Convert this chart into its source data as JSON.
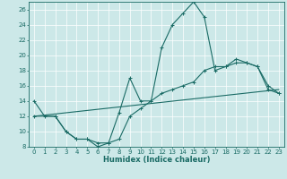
{
  "xlabel": "Humidex (Indice chaleur)",
  "bg_color": "#cce8e8",
  "line_color": "#1a6b65",
  "xlim": [
    -0.5,
    23.5
  ],
  "ylim": [
    8,
    27
  ],
  "xticks": [
    0,
    1,
    2,
    3,
    4,
    5,
    6,
    7,
    8,
    9,
    10,
    11,
    12,
    13,
    14,
    15,
    16,
    17,
    18,
    19,
    20,
    21,
    22,
    23
  ],
  "yticks": [
    8,
    10,
    12,
    14,
    16,
    18,
    20,
    22,
    24,
    26
  ],
  "curve1_x": [
    0,
    1,
    2,
    3,
    4,
    5,
    6,
    7,
    8,
    9,
    10,
    11,
    12,
    13,
    14,
    15,
    16,
    17,
    18,
    19,
    20,
    21,
    22,
    23
  ],
  "curve1_y": [
    14,
    12,
    12,
    10,
    9,
    9,
    8,
    8.5,
    12.5,
    17,
    14,
    14,
    21,
    24,
    25.5,
    27,
    25,
    18,
    18.5,
    19.5,
    19,
    18.5,
    16,
    15
  ],
  "curve2_x": [
    0,
    2,
    3,
    4,
    5,
    6,
    7,
    8,
    9,
    10,
    11,
    12,
    13,
    14,
    15,
    16,
    17,
    18,
    19,
    20,
    21,
    22,
    23
  ],
  "curve2_y": [
    12,
    12,
    10,
    9,
    9,
    8.5,
    8.5,
    9,
    12,
    13,
    14,
    15,
    15.5,
    16,
    16.5,
    18,
    18.5,
    18.5,
    19,
    19,
    18.5,
    15.5,
    15
  ],
  "curve3_x": [
    0,
    23
  ],
  "curve3_y": [
    12,
    15.5
  ],
  "grid_color": "#ffffff",
  "tick_fontsize": 5,
  "xlabel_fontsize": 6,
  "linewidth": 0.8,
  "markersize": 2.5
}
